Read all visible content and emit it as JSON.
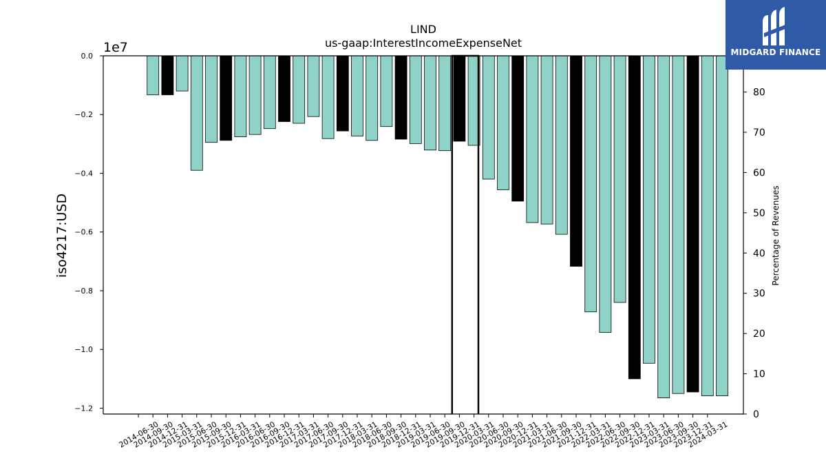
{
  "chart_data": {
    "type": "bar",
    "title": "LIND",
    "subtitle": "us-gaap:InterestIncomeExpenseNet",
    "ylabel": "iso4217:USD",
    "y_offset_label": "1e7",
    "y2label": "Percentage of Revenues",
    "ylim": [
      -1.22,
      0.0
    ],
    "y2lim": [
      0,
      89
    ],
    "yticks": [
      "0.0",
      "−0.2",
      "−0.4",
      "−0.6",
      "−0.8",
      "−1.0",
      "−1.2"
    ],
    "y2ticks": [
      "0",
      "10",
      "20",
      "30",
      "40",
      "50",
      "60",
      "70",
      "80"
    ],
    "categories": [
      "2014-06-30",
      "2014-09-30",
      "2014-12-31",
      "2015-03-31",
      "2015-06-30",
      "2015-09-30",
      "2015-12-31",
      "2016-03-31",
      "2016-06-30",
      "2016-09-30",
      "2016-12-31",
      "2017-03-31",
      "2017-06-30",
      "2017-09-30",
      "2017-12-31",
      "2018-03-31",
      "2018-06-30",
      "2018-09-30",
      "2018-12-31",
      "2019-03-31",
      "2019-06-30",
      "2019-09-30",
      "2019-12-31",
      "2020-03-31",
      "2020-06-30",
      "2020-09-30",
      "2020-12-31",
      "2021-03-31",
      "2021-06-30",
      "2021-09-30",
      "2021-12-31",
      "2022-03-31",
      "2022-06-30",
      "2022-09-30",
      "2022-12-31",
      "2023-03-31",
      "2023-06-30",
      "2023-09-30",
      "2023-12-31",
      "2024-03-31"
    ],
    "values": [
      -1330000,
      -1330000,
      -1200000,
      -3900000,
      -2950000,
      -2880000,
      -2760000,
      -2680000,
      -2480000,
      -2240000,
      -2300000,
      -2070000,
      -2820000,
      -2560000,
      -2730000,
      -2880000,
      -2410000,
      -2840000,
      -2990000,
      -3210000,
      -3230000,
      -2910000,
      -3050000,
      -4200000,
      -4560000,
      -4950000,
      -5680000,
      -5730000,
      -6080000,
      -7170000,
      -8720000,
      -9420000,
      -8400000,
      -11000000,
      -10470000,
      -11650000,
      -11500000,
      -11450000,
      -11580000,
      -11580000
    ],
    "bar_colors": [
      "#8fd3c8",
      "#000000",
      "#8fd3c8",
      "#8fd3c8",
      "#8fd3c8",
      "#000000",
      "#8fd3c8",
      "#8fd3c8",
      "#8fd3c8",
      "#000000",
      "#8fd3c8",
      "#8fd3c8",
      "#8fd3c8",
      "#000000",
      "#8fd3c8",
      "#8fd3c8",
      "#8fd3c8",
      "#000000",
      "#8fd3c8",
      "#8fd3c8",
      "#8fd3c8",
      "#000000",
      "#8fd3c8",
      "#8fd3c8",
      "#8fd3c8",
      "#000000",
      "#8fd3c8",
      "#8fd3c8",
      "#8fd3c8",
      "#000000",
      "#8fd3c8",
      "#8fd3c8",
      "#8fd3c8",
      "#000000",
      "#8fd3c8",
      "#8fd3c8",
      "#8fd3c8",
      "#000000",
      "#8fd3c8",
      "#8fd3c8"
    ],
    "first_bar_category_index": 1,
    "percentage_series": {
      "type": "line",
      "axis": "right",
      "color": "#000000",
      "points": [
        [
          21.5,
          0
        ],
        [
          21.5,
          89
        ],
        [
          22.5,
          89
        ],
        [
          23.3,
          89
        ],
        [
          23.3,
          0
        ]
      ]
    },
    "grid": false
  },
  "logo": {
    "text": "MIDGARD FINANCE",
    "bg_color": "#2f5aa8",
    "icon": "midgard-logo-icon"
  }
}
